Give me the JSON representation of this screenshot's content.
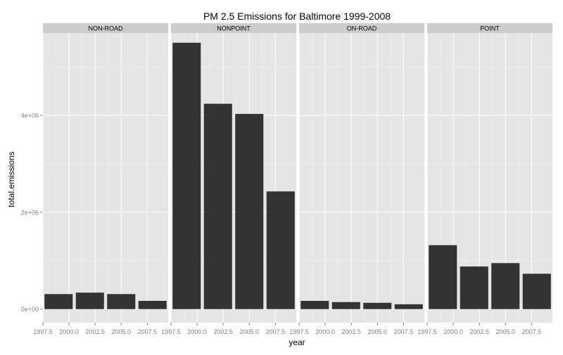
{
  "chart_data": {
    "type": "bar",
    "title": "PM 2.5 Emissions for Baltimore 1999-2008",
    "xlabel": "year",
    "ylabel": "total.emissions",
    "x": [
      1999,
      2002,
      2005,
      2008
    ],
    "xlim": [
      1997.5,
      2009.5
    ],
    "ylim": [
      -280000,
      5700000
    ],
    "x_ticks": [
      1997.5,
      2000.0,
      2002.5,
      2005.0,
      2007.5
    ],
    "x_tick_labels": [
      "1997.5",
      "2000.0",
      "2002.5",
      "2005.0",
      "2007.5"
    ],
    "y_ticks": [
      0,
      2000000,
      4000000
    ],
    "y_tick_labels": [
      "0e+00",
      "2e+06",
      "4e+06"
    ],
    "grid": true,
    "facets": [
      {
        "label": "NON-ROAD",
        "values": [
          310000,
          340000,
          310000,
          170000
        ]
      },
      {
        "label": "NONPOINT",
        "values": [
          5500000,
          4240000,
          4030000,
          2430000
        ]
      },
      {
        "label": "ON-ROAD",
        "values": [
          170000,
          145000,
          130000,
          100000
        ]
      },
      {
        "label": "POINT",
        "values": [
          1320000,
          880000,
          950000,
          730000
        ]
      }
    ],
    "colors": {
      "bar": "#333333",
      "panel": "#e5e5e5",
      "strip": "#cccccc",
      "grid_major": "#ffffff",
      "grid_minor": "#f2f2f2",
      "text": "#000000",
      "tick_text": "#7f7f7f"
    }
  }
}
